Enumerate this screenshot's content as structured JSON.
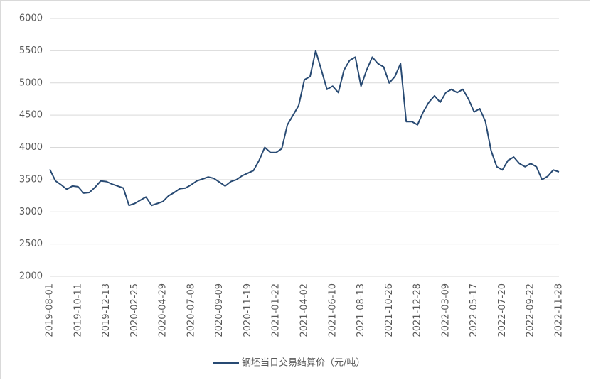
{
  "chart_data": {
    "type": "line",
    "categories": [
      "2019-08-01",
      null,
      null,
      null,
      null,
      "2019-10-11",
      null,
      null,
      null,
      null,
      "2019-12-13",
      null,
      null,
      null,
      null,
      "2020-02-25",
      null,
      null,
      null,
      null,
      "2020-04-29",
      null,
      null,
      null,
      null,
      "2020-07-08",
      null,
      null,
      null,
      null,
      "2020-09-09",
      null,
      null,
      null,
      null,
      "2020-11-19",
      null,
      null,
      null,
      null,
      "2021-01-22",
      null,
      null,
      null,
      null,
      "2021-04-02",
      null,
      null,
      null,
      null,
      "2021-06-10",
      null,
      null,
      null,
      null,
      "2021-08-13",
      null,
      null,
      null,
      null,
      "2021-10-26",
      null,
      null,
      null,
      null,
      "2021-12-28",
      null,
      null,
      null,
      null,
      "2022-03-09",
      null,
      null,
      null,
      null,
      "2022-05-17",
      null,
      null,
      null,
      null,
      "2022-07-20",
      null,
      null,
      null,
      null,
      "2022-09-22",
      null,
      null,
      null,
      null,
      "2022-11-28"
    ],
    "series": [
      {
        "name": "钢坯当日交易结算价（元/吨）",
        "color": "#284a73",
        "values": [
          3660,
          3480,
          3420,
          3350,
          3400,
          3390,
          3290,
          3300,
          3380,
          3480,
          3470,
          3430,
          3400,
          3370,
          3100,
          3130,
          3180,
          3230,
          3100,
          3130,
          3160,
          3250,
          3300,
          3360,
          3370,
          3420,
          3480,
          3510,
          3540,
          3520,
          3460,
          3400,
          3470,
          3500,
          3560,
          3600,
          3640,
          3800,
          4000,
          3920,
          3920,
          3980,
          4350,
          4500,
          4650,
          5050,
          5100,
          5500,
          5200,
          4900,
          4950,
          4850,
          5200,
          5350,
          5400,
          4950,
          5200,
          5400,
          5300,
          5250,
          5000,
          5100,
          5300,
          4400,
          4400,
          4350,
          4550,
          4700,
          4800,
          4700,
          4850,
          4900,
          4850,
          4900,
          4750,
          4550,
          4600,
          4400,
          3950,
          3700,
          3650,
          3800,
          3850,
          3750,
          3700,
          3750,
          3700,
          3500,
          3550,
          3650,
          3620
        ]
      }
    ],
    "ylim": [
      2000,
      6000
    ],
    "yticks": [
      2000,
      2500,
      3000,
      3500,
      4000,
      4500,
      5000,
      5500,
      6000
    ],
    "grid": true,
    "legend": "bottom"
  }
}
